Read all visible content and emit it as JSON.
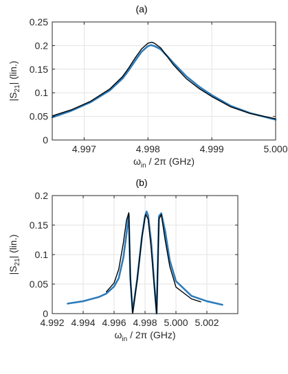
{
  "figure": {
    "panel_a_label": "(a)",
    "panel_b_label": "(b)"
  },
  "colors": {
    "data": "#2b7bba",
    "fit": "#000000",
    "grid": "#e3e3e3",
    "axis": "#262626"
  },
  "chart_data": [
    {
      "panel": "(a)",
      "type": "line",
      "xlabel": {
        "main": "ω",
        "sub": "in",
        "rest": " / 2π (GHz)"
      },
      "ylabel": {
        "pre": "|S",
        "sub": "21",
        "post": "| (lin.)"
      },
      "xlim": [
        4.9965,
        5.0
      ],
      "ylim": [
        0,
        0.25
      ],
      "xticks": [
        4.997,
        4.998,
        4.999,
        5.0
      ],
      "xtick_labels": [
        "4.997",
        "4.998",
        "4.999",
        "5.000"
      ],
      "yticks": [
        0,
        0.05,
        0.1,
        0.15,
        0.2,
        0.25
      ],
      "ytick_labels": [
        "0",
        "0.05",
        "0.1",
        "0.15",
        "0.2",
        "0.25"
      ],
      "grid": true,
      "series": [
        {
          "role": "measured",
          "x": [
            4.9965,
            4.9968,
            4.9971,
            4.9974,
            4.9976,
            4.9977,
            4.9978,
            4.9979,
            4.998,
            4.99805,
            4.9981,
            4.9982,
            4.9983,
            4.9984,
            4.9986,
            4.9988,
            4.999,
            4.9993,
            4.9996,
            5.0
          ],
          "y": [
            0.048,
            0.062,
            0.08,
            0.105,
            0.13,
            0.148,
            0.168,
            0.187,
            0.199,
            0.201,
            0.199,
            0.192,
            0.178,
            0.163,
            0.135,
            0.113,
            0.095,
            0.072,
            0.057,
            0.043
          ]
        },
        {
          "role": "fit",
          "x": [
            4.9965,
            4.9968,
            4.9971,
            4.9974,
            4.9976,
            4.9977,
            4.9978,
            4.9979,
            4.998,
            4.99806,
            4.9981,
            4.9982,
            4.9983,
            4.9984,
            4.9986,
            4.9988,
            4.999,
            4.9993,
            4.9996,
            5.0
          ],
          "y": [
            0.051,
            0.064,
            0.082,
            0.108,
            0.134,
            0.153,
            0.174,
            0.193,
            0.205,
            0.207,
            0.205,
            0.195,
            0.177,
            0.159,
            0.13,
            0.109,
            0.092,
            0.07,
            0.056,
            0.045
          ]
        }
      ]
    },
    {
      "panel": "(b)",
      "type": "line",
      "xlabel": {
        "main": "ω",
        "sub": "in",
        "rest": " / 2π (GHz)"
      },
      "ylabel": {
        "pre": "|S",
        "sub": "21",
        "post": "| (lin.)"
      },
      "xlim": [
        4.992,
        5.004
      ],
      "ylim": [
        0,
        0.2
      ],
      "xticks": [
        4.992,
        4.994,
        4.996,
        4.998,
        5.0,
        5.002
      ],
      "xtick_labels": [
        "4.992",
        "4.994",
        "4.996",
        "4.998",
        "5.000",
        "5.002"
      ],
      "yticks": [
        0,
        0.05,
        0.1,
        0.15,
        0.2
      ],
      "ytick_labels": [
        "0",
        "0.05",
        "0.1",
        "0.15",
        "0.2"
      ],
      "grid": true,
      "series": [
        {
          "role": "measured",
          "x": [
            4.993,
            4.994,
            4.995,
            4.9955,
            4.996,
            4.9963,
            4.9966,
            4.9968,
            4.99695,
            4.99705,
            4.9972,
            4.9975,
            4.9978,
            4.998,
            4.9981,
            4.9982,
            4.9984,
            4.9986,
            4.99875,
            4.9989,
            4.99905,
            4.9993,
            4.9996,
            5.0,
            5.001,
            5.002,
            5.003
          ],
          "y": [
            0.017,
            0.021,
            0.028,
            0.034,
            0.046,
            0.06,
            0.095,
            0.135,
            0.168,
            0.06,
            0.003,
            0.06,
            0.13,
            0.165,
            0.173,
            0.166,
            0.12,
            0.05,
            0.0,
            0.165,
            0.17,
            0.14,
            0.09,
            0.055,
            0.03,
            0.021,
            0.015
          ]
        },
        {
          "role": "fit",
          "x": [
            4.9955,
            4.996,
            4.9963,
            4.9966,
            4.9968,
            4.99695,
            4.99705,
            4.9972,
            4.9975,
            4.9978,
            4.998,
            4.99805,
            4.9982,
            4.9984,
            4.9986,
            4.99875,
            4.9989,
            4.99905,
            4.9993,
            4.9996,
            5.0,
            5.001,
            5.0016
          ],
          "y": [
            0.037,
            0.052,
            0.075,
            0.12,
            0.158,
            0.171,
            0.06,
            0.0,
            0.058,
            0.13,
            0.163,
            0.168,
            0.16,
            0.11,
            0.045,
            0.0,
            0.16,
            0.168,
            0.125,
            0.08,
            0.045,
            0.025,
            0.02
          ]
        }
      ]
    }
  ]
}
